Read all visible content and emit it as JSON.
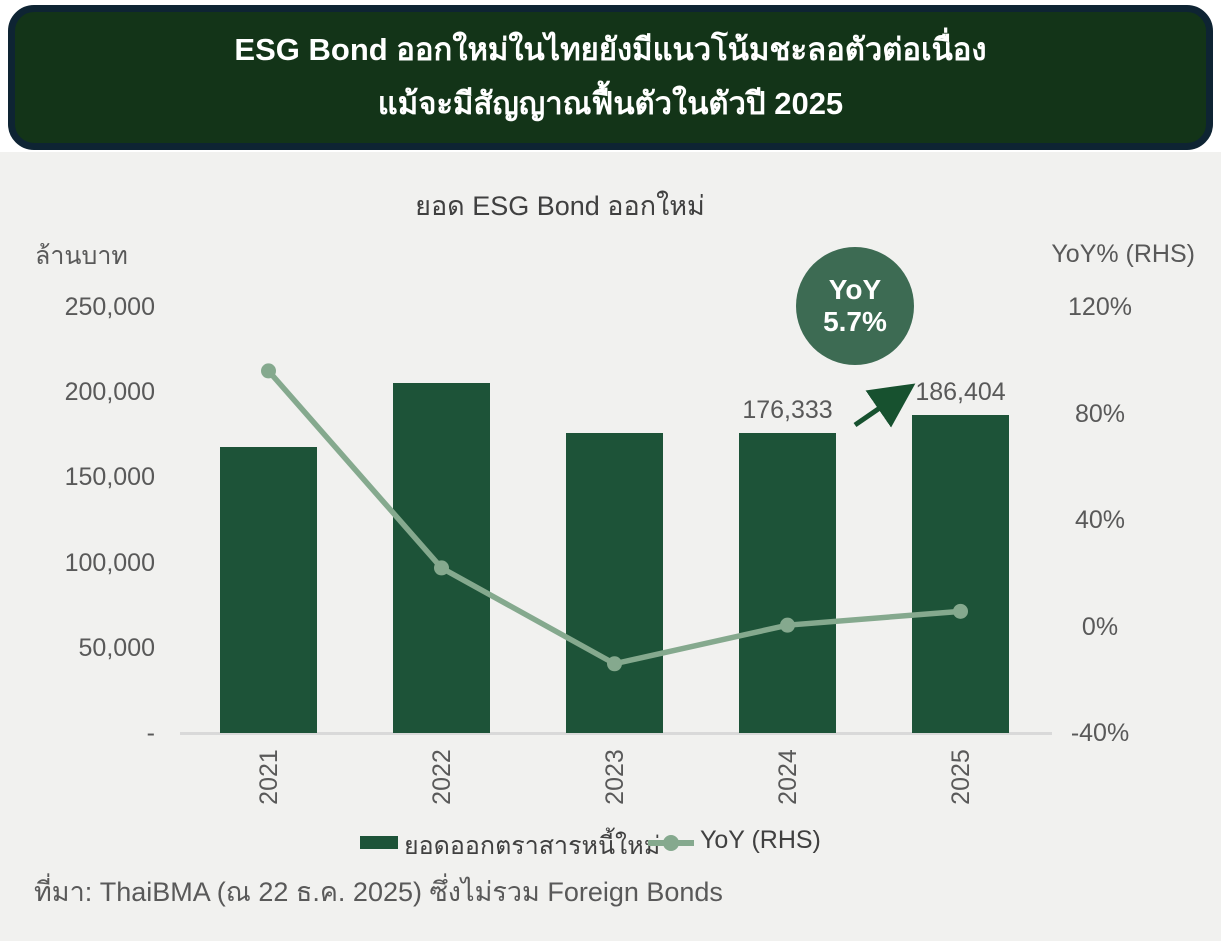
{
  "header": {
    "title_line1": "ESG Bond ออกใหม่ในไทยยังมีแนวโน้มชะลอตัวต่อเนื่อง",
    "title_line2": "แม้จะมีสัญญาณฟื้นตัวในตัวปี 2025"
  },
  "chart": {
    "title": "ยอด ESG Bond ออกใหม่",
    "left_axis_unit": "ล้านบาท",
    "right_axis_unit": "YoY% (RHS)",
    "left_ticks": [
      "250,000",
      "200,000",
      "150,000",
      "100,000",
      "50,000",
      "-"
    ],
    "right_ticks": [
      "120%",
      "80%",
      "40%",
      "0%",
      "-40%"
    ],
    "badge_line1": "YoY",
    "badge_line2": "5.7%",
    "legend_bar_label": "ยอดออกตราสารหนี้ใหม่",
    "legend_line_label": "YoY (RHS)"
  },
  "chart_data": {
    "type": "bar",
    "title": "ยอด ESG Bond ออกใหม่",
    "categories": [
      "2021",
      "2022",
      "2023",
      "2024",
      "2025"
    ],
    "series": [
      {
        "name": "ยอดออกตราสารหนี้ใหม่",
        "type": "bar",
        "axis": "left",
        "values": [
          168000,
          205500,
          176000,
          176333,
          186404
        ]
      },
      {
        "name": "YoY (RHS)",
        "type": "line",
        "axis": "right",
        "values": [
          96,
          22,
          -14,
          0.5,
          5.7
        ]
      }
    ],
    "data_labels": [
      {
        "category": "2024",
        "text": "176,333"
      },
      {
        "category": "2025",
        "text": "186,404"
      }
    ],
    "left_axis_label": "ล้านบาท",
    "right_axis_label": "YoY% (RHS)",
    "left_ylim": [
      0,
      250000
    ],
    "right_ylim": [
      -40,
      120
    ],
    "grid": false,
    "legend_position": "bottom",
    "annotations": [
      {
        "type": "badge",
        "text": "YoY 5.7%"
      },
      {
        "type": "arrow",
        "description": "up-right arrow between 2024 and 2025 bars"
      }
    ]
  },
  "source": "ที่มา: ThaiBMA (ณ 22 ธ.ค. 2025) ซึ่งไม่รวม Foreign Bonds",
  "colors": {
    "header_bg": "#133418",
    "header_border": "#0e2433",
    "content_bg": "#f1f1ef",
    "bar": "#1d5338",
    "line": "#85a98e",
    "badge": "#3d6b53",
    "arrow": "#17512f",
    "axis_text": "#595959",
    "title_text": "#404040",
    "axis_line": "#d9d9d9"
  }
}
